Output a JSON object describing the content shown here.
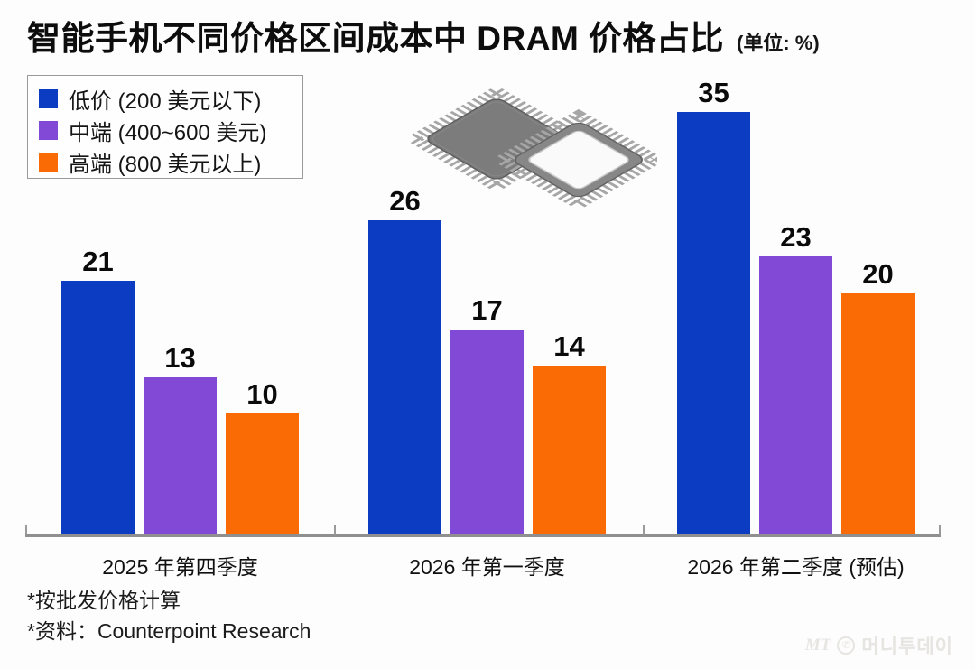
{
  "header": {
    "title": "智能手机不同价格区间成本中 DRAM 价格占比",
    "unit": "(单位: %)"
  },
  "legend": {
    "items": [
      {
        "label": "低价 (200 美元以下)",
        "color": "#0b3cc1"
      },
      {
        "label": "中端 (400~600 美元)",
        "color": "#8149d6"
      },
      {
        "label": "高端 (800 美元以上)",
        "color": "#fa6a05"
      }
    ]
  },
  "illustration": {
    "icon": "dram-chips-illustration"
  },
  "chart_data": {
    "type": "bar",
    "title": "智能手机不同价格区间成本中 DRAM 价格占比",
    "unit": "%",
    "categories": [
      "2025 年第四季度",
      "2026 年第一季度",
      "2026 年第二季度 (预估)"
    ],
    "series": [
      {
        "name": "低价 (200 美元以下)",
        "color": "#0b3cc1",
        "values": [
          21,
          26,
          35
        ]
      },
      {
        "name": "中端 (400~600 美元)",
        "color": "#8149d6",
        "values": [
          13,
          17,
          23
        ]
      },
      {
        "name": "高端 (800 美元以上)",
        "color": "#fa6a05",
        "values": [
          10,
          14,
          20
        ]
      }
    ],
    "value_labels": true,
    "grid": false,
    "legend_position": "top-left",
    "ylim": [
      0,
      35
    ]
  },
  "footer": {
    "notes": [
      "*按批发价格计算",
      "*资料：Counterpoint Research"
    ]
  },
  "logo": {
    "mt": "MT",
    "phone_icon": "phone-circle-icon",
    "name": "머니투데이"
  }
}
